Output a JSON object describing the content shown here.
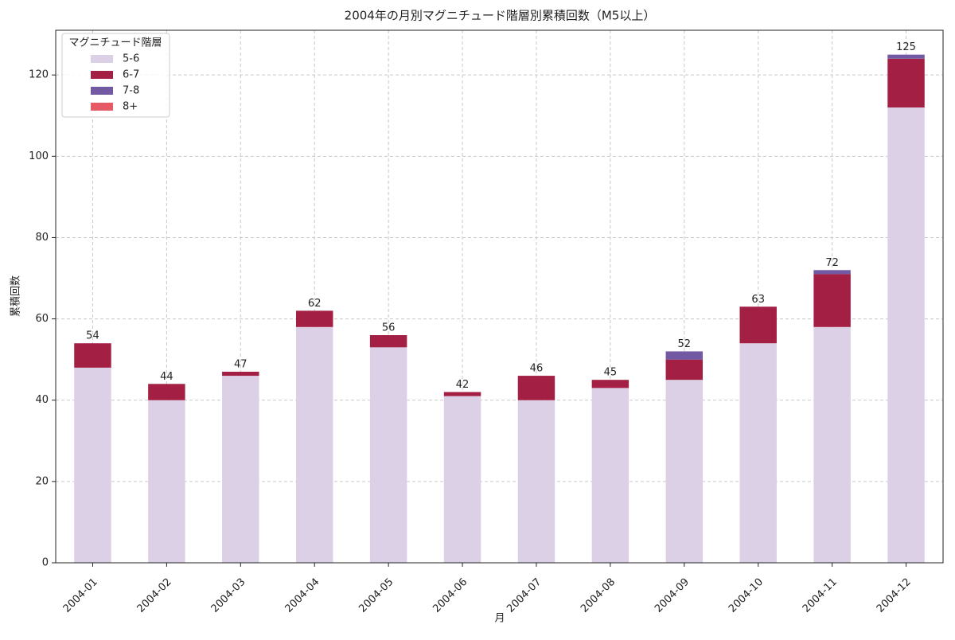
{
  "chart_data": {
    "type": "stacked_bar",
    "title": "2004年の月別マグニチュード階層別累積回数（M5以上）",
    "x_label": "月",
    "y_label": "累積回数",
    "legend_title": "マグニチュード階層",
    "legend_position": "upper-left",
    "categories": [
      "2004-01",
      "2004-02",
      "2004-03",
      "2004-04",
      "2004-05",
      "2004-06",
      "2004-07",
      "2004-08",
      "2004-09",
      "2004-10",
      "2004-11",
      "2004-12"
    ],
    "series": [
      {
        "name": "5-6",
        "color": "#dcd0e6",
        "values": [
          48,
          40,
          46,
          58,
          53,
          41,
          40,
          43,
          45,
          54,
          58,
          112
        ]
      },
      {
        "name": "6-7",
        "color": "#a31f43",
        "values": [
          6,
          4,
          1,
          4,
          3,
          1,
          6,
          2,
          5,
          9,
          13,
          12
        ]
      },
      {
        "name": "7-8",
        "color": "#7159a3",
        "values": [
          0,
          0,
          0,
          0,
          0,
          0,
          0,
          0,
          2,
          0,
          1,
          1
        ]
      },
      {
        "name": "8+",
        "color": "#e55a65",
        "values": [
          0,
          0,
          0,
          0,
          0,
          0,
          0,
          0,
          0,
          0,
          0,
          0
        ]
      }
    ],
    "totals": [
      54,
      44,
      47,
      62,
      56,
      42,
      46,
      45,
      52,
      63,
      72,
      125
    ],
    "ylim": [
      0,
      131
    ],
    "yticks": [
      0,
      20,
      40,
      60,
      80,
      100,
      120
    ],
    "grid": true
  }
}
